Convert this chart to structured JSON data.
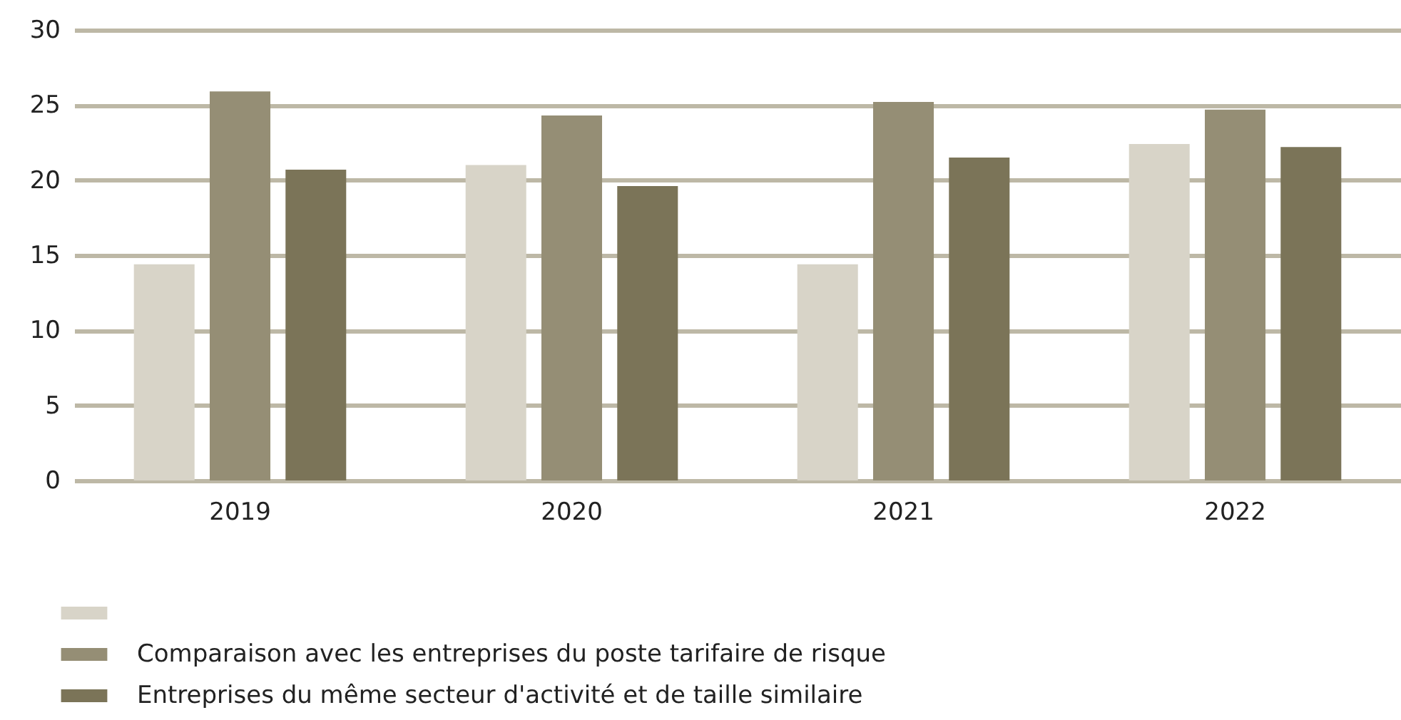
{
  "chart_data": {
    "type": "bar",
    "categories": [
      "2019",
      "2020",
      "2021",
      "2022"
    ],
    "series": [
      {
        "color": "#d8d4c8",
        "values": [
          14.4,
          21.0,
          14.4,
          22.4
        ]
      },
      {
        "name": "Comparaison avec les entreprises du poste tarifaire de risque",
        "color": "#958e75",
        "values": [
          25.9,
          24.3,
          25.2,
          24.7
        ]
      },
      {
        "name": "Entreprises du même secteur d'activité et de taille similaire",
        "color": "#7b7458",
        "values": [
          20.7,
          19.6,
          21.5,
          22.2
        ]
      }
    ],
    "ylim": [
      0,
      30
    ],
    "yticks": [
      0,
      5,
      10,
      15,
      20,
      25,
      30
    ],
    "grid": "y",
    "legend": "bottom left"
  }
}
